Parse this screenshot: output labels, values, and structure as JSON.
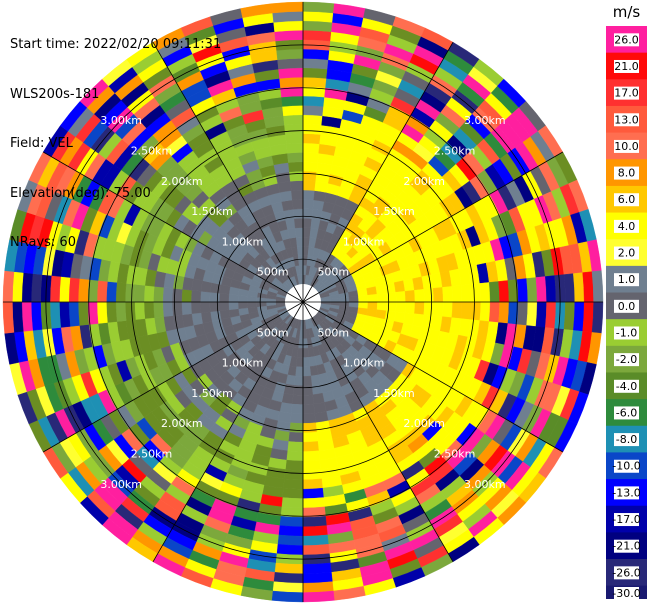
{
  "info": {
    "start_time": "Start time: 2022/02/20 09:11:31",
    "instrument": "WLS200s-181",
    "field": "Field: VEL",
    "elevation": "Elevation(deg): 75.00",
    "nrays": "NRays: 60"
  },
  "chart_data": {
    "type": "heatmap",
    "title": "",
    "projection": "polar-ppi",
    "field": "VEL",
    "elevation_deg": 75.0,
    "n_rays": 60,
    "n_gates": 30,
    "range_km": [
      0,
      3.5
    ],
    "range_ring_labels": [
      "500m",
      "1.00km",
      "1.50km",
      "2.00km",
      "2.50km",
      "3.00km"
    ],
    "range_rings_km": [
      0.5,
      1.0,
      1.5,
      2.0,
      2.5,
      3.0
    ],
    "radial_lines_deg": [
      0,
      30,
      60,
      90,
      120,
      150,
      180,
      210,
      240,
      270,
      300,
      330
    ],
    "colorbar": {
      "label": "m/s",
      "tick_labels": [
        "26.0",
        "21.0",
        "17.0",
        "13.0",
        "10.0",
        "8.0",
        "6.0",
        "4.0",
        "2.0",
        "1.0",
        "0.0",
        "-1.0",
        "-2.0",
        "-4.0",
        "-6.0",
        "-8.0",
        "-10.0",
        "-13.0",
        "-17.0",
        "-21.0",
        "-26.0",
        "-30.0"
      ],
      "colors": [
        "#ff1f9f",
        "#ff0a0a",
        "#ff3030",
        "#ff5a3c",
        "#ff6e50",
        "#ff9600",
        "#ffc800",
        "#ffff00",
        "#ffff30",
        "#6f7f90",
        "#64646e",
        "#9acd32",
        "#7ca83c",
        "#5a8c28",
        "#2e8b3c",
        "#1e90b4",
        "#0a46c8",
        "#0000ff",
        "#0000aa",
        "#000080",
        "#282878"
      ],
      "bottom_color": "#191970"
    },
    "pattern_description_values": {
      "near_field_velocity_range_ms": [
        -4.0,
        4.0
      ],
      "east_sector_velocity_ms": 2.0,
      "west_sector_velocity_ms": -2.0,
      "far_field": "noisy"
    }
  }
}
